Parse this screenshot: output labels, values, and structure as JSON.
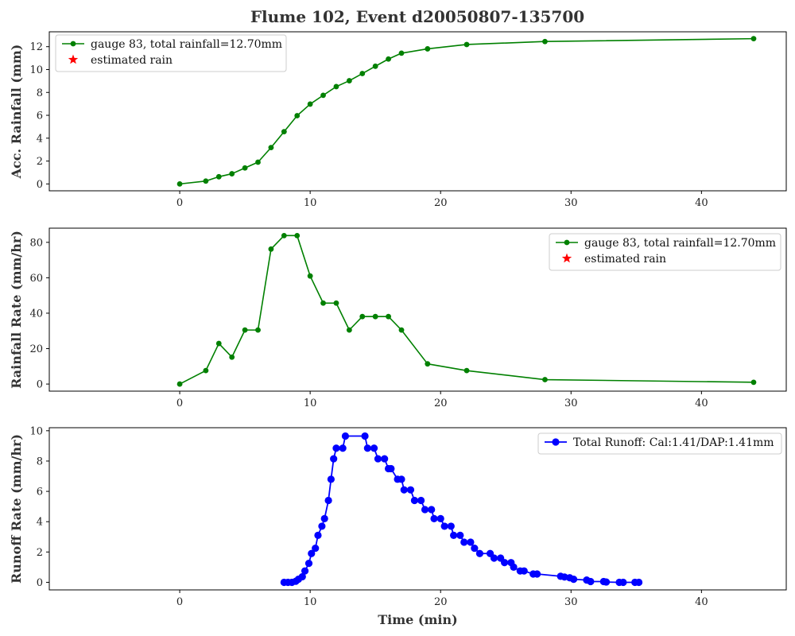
{
  "figure": {
    "title": "Flume 102, Event d20050807-135700"
  },
  "chart_data": [
    {
      "type": "line",
      "title": "Flume 102, Event d20050807-135700",
      "xlabel": "",
      "ylabel": "Acc. Rainfall (mm)",
      "xlim": [
        -10,
        46.5
      ],
      "ylim": [
        -0.6,
        13.3
      ],
      "xticks": [
        0,
        10,
        20,
        30,
        40
      ],
      "yticks": [
        0,
        2,
        4,
        6,
        8,
        10,
        12
      ],
      "grid": false,
      "legend_position": "upper left",
      "series": [
        {
          "name": "gauge 83, total rainfall=12.70mm",
          "color": "#008000",
          "marker": "circle",
          "x": [
            0,
            2,
            3,
            4,
            5,
            6,
            7,
            8,
            9,
            10,
            11,
            12,
            13,
            14,
            15,
            16,
            17,
            19,
            22,
            28,
            44
          ],
          "y": [
            0,
            0.25,
            0.63,
            0.89,
            1.4,
            1.9,
            3.18,
            4.57,
            5.97,
            6.98,
            7.75,
            8.51,
            9.02,
            9.65,
            10.29,
            10.92,
            11.43,
            11.81,
            12.19,
            12.45,
            12.7
          ]
        },
        {
          "name": "estimated rain",
          "color": "#ff0000",
          "marker": "star",
          "x": [],
          "y": []
        }
      ]
    },
    {
      "type": "line",
      "xlabel": "",
      "ylabel": "Rainfall Rate (mm/hr)",
      "xlim": [
        -10,
        46.5
      ],
      "ylim": [
        -4,
        88
      ],
      "xticks": [
        0,
        10,
        20,
        30,
        40
      ],
      "yticks": [
        0,
        20,
        40,
        60,
        80
      ],
      "grid": false,
      "legend_position": "upper right",
      "series": [
        {
          "name": "gauge 83, total rainfall=12.70mm",
          "color": "#008000",
          "marker": "circle",
          "x": [
            0,
            2,
            3,
            4,
            5,
            6,
            7,
            8,
            9,
            10,
            11,
            12,
            13,
            14,
            15,
            16,
            17,
            19,
            22,
            28,
            44
          ],
          "y": [
            0,
            7.6,
            22.9,
            15.2,
            30.5,
            30.5,
            76.2,
            83.8,
            83.8,
            61.0,
            45.7,
            45.7,
            30.5,
            38.1,
            38.1,
            38.1,
            30.5,
            11.4,
            7.6,
            2.5,
            1.0
          ]
        },
        {
          "name": "estimated rain",
          "color": "#ff0000",
          "marker": "star",
          "x": [],
          "y": []
        }
      ]
    },
    {
      "type": "line",
      "xlabel": "Time (min)",
      "ylabel": "Runoff Rate (mm/hr)",
      "xlim": [
        -10,
        46.5
      ],
      "ylim": [
        -0.5,
        10.2
      ],
      "xticks": [
        0,
        10,
        20,
        30,
        40
      ],
      "yticks": [
        0,
        2,
        4,
        6,
        8,
        10
      ],
      "grid": false,
      "legend_position": "upper right",
      "series": [
        {
          "name": "Total Runoff: Cal:1.41/DAP:1.41mm",
          "color": "#0000ff",
          "marker": "circle",
          "x": [
            8.0,
            8.3,
            8.6,
            8.9,
            9.1,
            9.4,
            9.6,
            9.9,
            10.1,
            10.4,
            10.6,
            10.9,
            11.1,
            11.4,
            11.6,
            11.8,
            12.0,
            12.5,
            12.7,
            14.2,
            14.4,
            14.9,
            15.2,
            15.7,
            16.0,
            16.2,
            16.7,
            17.0,
            17.2,
            17.7,
            18.0,
            18.5,
            18.8,
            19.3,
            19.5,
            20.0,
            20.3,
            20.8,
            21.0,
            21.5,
            21.8,
            22.3,
            22.6,
            23.0,
            23.8,
            24.1,
            24.6,
            24.9,
            25.4,
            25.6,
            26.1,
            26.4,
            27.1,
            27.4,
            29.2,
            29.5,
            29.9,
            30.2,
            31.2,
            31.5,
            32.5,
            32.7,
            33.7,
            34.0,
            34.9,
            35.2
          ],
          "y": [
            0.0,
            0.0,
            0.0,
            0.07,
            0.2,
            0.37,
            0.75,
            1.25,
            1.9,
            2.25,
            3.1,
            3.7,
            4.2,
            5.4,
            6.8,
            8.15,
            8.85,
            8.85,
            9.65,
            9.65,
            8.85,
            8.85,
            8.15,
            8.15,
            7.5,
            7.5,
            6.8,
            6.8,
            6.1,
            6.1,
            5.4,
            5.4,
            4.8,
            4.8,
            4.2,
            4.2,
            3.7,
            3.7,
            3.1,
            3.1,
            2.65,
            2.65,
            2.25,
            1.9,
            1.9,
            1.6,
            1.6,
            1.3,
            1.3,
            1.0,
            0.75,
            0.75,
            0.55,
            0.55,
            0.4,
            0.35,
            0.3,
            0.2,
            0.15,
            0.05,
            0.05,
            0.02,
            0.0,
            0.0,
            0.0,
            0.0
          ]
        }
      ]
    }
  ]
}
